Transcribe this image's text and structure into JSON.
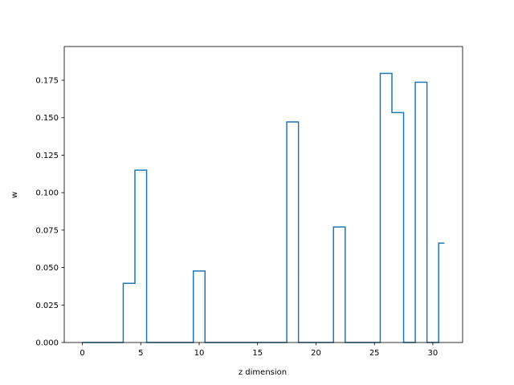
{
  "chart_data": {
    "type": "line",
    "drawstyle": "steps-mid",
    "xlabel": "z dimension",
    "ylabel": "w",
    "xlim": [
      -1.55,
      32.55
    ],
    "ylim": [
      0,
      0.1975
    ],
    "xticks": [
      0,
      5,
      10,
      15,
      20,
      25,
      30
    ],
    "yticks": [
      0.0,
      0.025,
      0.05,
      0.075,
      0.1,
      0.125,
      0.15,
      0.175
    ],
    "ytick_labels": [
      "0.000",
      "0.025",
      "0.050",
      "0.075",
      "0.100",
      "0.125",
      "0.150",
      "0.175"
    ],
    "grid": false,
    "series": [
      {
        "color": "#1f77b4",
        "x": [
          0,
          1,
          2,
          3,
          4,
          5,
          6,
          7,
          8,
          9,
          10,
          11,
          12,
          13,
          14,
          15,
          16,
          17,
          18,
          19,
          20,
          21,
          22,
          23,
          24,
          25,
          26,
          27,
          28,
          29,
          30,
          31
        ],
        "y": [
          0,
          0,
          0,
          0,
          0.0395,
          0.115,
          0,
          0,
          0,
          0,
          0.0477,
          0,
          0,
          0,
          0,
          0,
          0,
          0,
          0.1472,
          0,
          0,
          0,
          0.0771,
          0,
          0,
          0,
          0.1796,
          0.1534,
          0,
          0.1737,
          0,
          0.0663
        ]
      }
    ]
  }
}
